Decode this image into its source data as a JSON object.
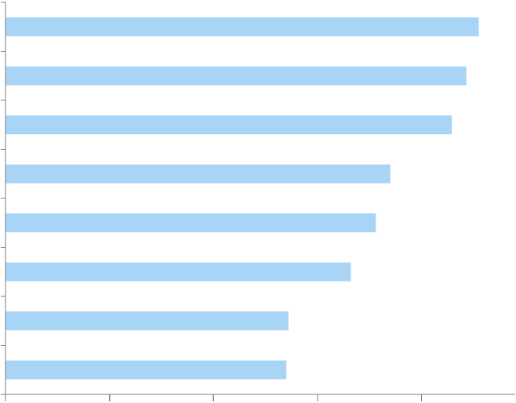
{
  "chart_data": {
    "type": "bar",
    "orientation": "horizontal",
    "categories": [
      "",
      "",
      "",
      "",
      "",
      "",
      "",
      ""
    ],
    "values": [
      455,
      443,
      429,
      370,
      356,
      332,
      272,
      270
    ],
    "xlim": [
      0,
      490
    ],
    "x_ticks": [
      0,
      100,
      200,
      300,
      400
    ],
    "title": "",
    "xlabel": "",
    "ylabel": "",
    "grid": false,
    "legend": "none",
    "bar_color": "#a8d4f5",
    "axis_color": "#7f7f7f"
  }
}
